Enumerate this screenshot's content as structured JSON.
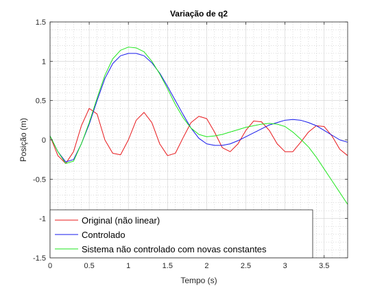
{
  "chart_data": {
    "type": "line",
    "title": "Variação de q2",
    "xlabel": "Tempo (s)",
    "ylabel": "Posição (m)",
    "xlim": [
      0,
      3.8
    ],
    "ylim": [
      -1.5,
      1.5
    ],
    "xticks": [
      0,
      0.5,
      1,
      1.5,
      2,
      2.5,
      3,
      3.5
    ],
    "yticks": [
      -1.5,
      -1,
      -0.5,
      0,
      0.5,
      1,
      1.5
    ],
    "xtick_labels": [
      "0",
      "0.5",
      "1",
      "1.5",
      "2",
      "2.5",
      "3",
      "3.5"
    ],
    "ytick_labels": [
      "-1.5",
      "-1",
      "-0.5",
      "0",
      "0.5",
      "1",
      "1.5"
    ],
    "grid": true,
    "minor_grid": true,
    "legend_position": "bottom-left",
    "series": [
      {
        "name": "Original (não linear)",
        "color": "#e8171a",
        "x": [
          0,
          0.1,
          0.2,
          0.3,
          0.4,
          0.5,
          0.6,
          0.7,
          0.8,
          0.9,
          1.0,
          1.1,
          1.2,
          1.3,
          1.4,
          1.5,
          1.6,
          1.7,
          1.8,
          1.9,
          2.0,
          2.1,
          2.2,
          2.3,
          2.4,
          2.5,
          2.6,
          2.7,
          2.8,
          2.9,
          3.0,
          3.1,
          3.2,
          3.3,
          3.4,
          3.5,
          3.6,
          3.7,
          3.8
        ],
        "y": [
          0.05,
          -0.2,
          -0.3,
          -0.15,
          0.18,
          0.4,
          0.33,
          0.0,
          -0.17,
          -0.19,
          0.0,
          0.25,
          0.35,
          0.22,
          -0.05,
          -0.2,
          -0.17,
          0.03,
          0.22,
          0.3,
          0.27,
          0.1,
          -0.1,
          -0.15,
          -0.05,
          0.12,
          0.24,
          0.23,
          0.12,
          -0.05,
          -0.15,
          -0.15,
          -0.03,
          0.1,
          0.18,
          0.17,
          0.05,
          -0.12,
          -0.2
        ]
      },
      {
        "name": "Controlado",
        "color": "#1417ec",
        "x": [
          0,
          0.1,
          0.2,
          0.3,
          0.4,
          0.5,
          0.6,
          0.7,
          0.8,
          0.9,
          1.0,
          1.1,
          1.2,
          1.3,
          1.4,
          1.5,
          1.6,
          1.7,
          1.8,
          1.9,
          2.0,
          2.1,
          2.2,
          2.3,
          2.4,
          2.5,
          2.6,
          2.7,
          2.8,
          2.9,
          3.0,
          3.1,
          3.2,
          3.3,
          3.4,
          3.5,
          3.6,
          3.7,
          3.8
        ],
        "y": [
          0.05,
          -0.15,
          -0.28,
          -0.25,
          -0.05,
          0.2,
          0.5,
          0.78,
          0.97,
          1.07,
          1.1,
          1.1,
          1.07,
          0.98,
          0.85,
          0.68,
          0.5,
          0.32,
          0.15,
          0.02,
          -0.05,
          -0.07,
          -0.07,
          -0.05,
          -0.01,
          0.04,
          0.09,
          0.14,
          0.19,
          0.22,
          0.25,
          0.26,
          0.25,
          0.22,
          0.18,
          0.12,
          0.06,
          0.0,
          -0.03
        ]
      },
      {
        "name": "Sistema não controlado com novas constantes",
        "color": "#1ee61c",
        "x": [
          0,
          0.1,
          0.2,
          0.3,
          0.4,
          0.5,
          0.6,
          0.7,
          0.8,
          0.9,
          1.0,
          1.1,
          1.2,
          1.3,
          1.4,
          1.5,
          1.6,
          1.7,
          1.8,
          1.9,
          2.0,
          2.1,
          2.2,
          2.3,
          2.4,
          2.5,
          2.6,
          2.7,
          2.8,
          2.9,
          3.0,
          3.1,
          3.2,
          3.3,
          3.4,
          3.5,
          3.6,
          3.7,
          3.8
        ],
        "y": [
          0.05,
          -0.15,
          -0.3,
          -0.27,
          -0.05,
          0.22,
          0.53,
          0.82,
          1.03,
          1.14,
          1.18,
          1.17,
          1.12,
          1.0,
          0.84,
          0.65,
          0.45,
          0.28,
          0.15,
          0.07,
          0.04,
          0.05,
          0.07,
          0.1,
          0.13,
          0.16,
          0.18,
          0.2,
          0.21,
          0.2,
          0.17,
          0.1,
          0.01,
          -0.09,
          -0.22,
          -0.37,
          -0.52,
          -0.67,
          -0.82
        ]
      }
    ]
  }
}
